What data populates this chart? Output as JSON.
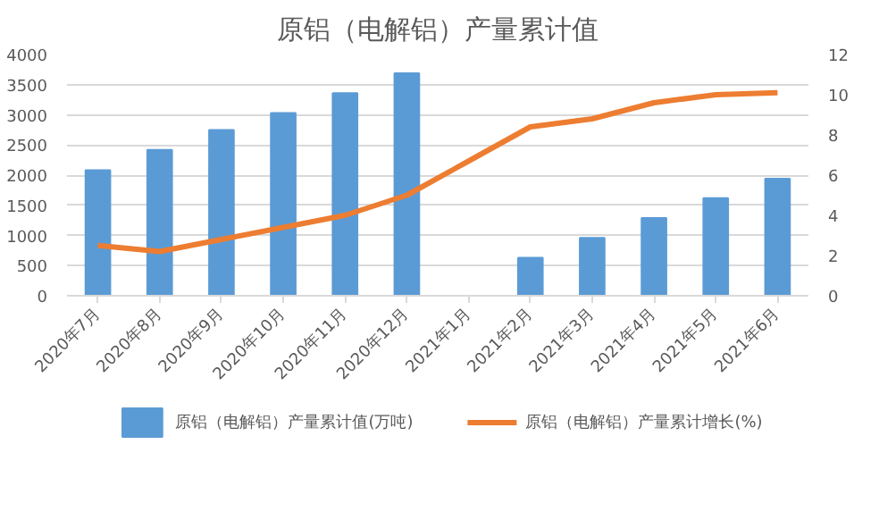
{
  "chart_data": {
    "type": "bar",
    "title": "原铝（电解铝）产量累计值",
    "categories": [
      "2020年7月",
      "2020年8月",
      "2020年9月",
      "2020年10月",
      "2020年11月",
      "2020年12月",
      "2021年1月",
      "2021年2月",
      "2021年3月",
      "2021年4月",
      "2021年5月",
      "2021年6月"
    ],
    "series": [
      {
        "name": "原铝（电解铝）产量累计值(万吨)",
        "color": "#5b9bd5",
        "values": [
          2080,
          2420,
          2750,
          3030,
          3360,
          3690,
          null,
          630,
          960,
          1290,
          1620,
          1940
        ]
      },
      {
        "name": "原铝（电解铝）产量累计增长(%)",
        "type": "line",
        "axis": "y2",
        "color": "#ed7d31",
        "values": [
          2.5,
          2.2,
          2.8,
          3.4,
          4.0,
          5.0,
          6.7,
          8.4,
          8.8,
          9.6,
          10.0,
          10.1
        ]
      }
    ],
    "ylim": [
      0,
      4000
    ],
    "yticks": [
      0,
      500,
      1000,
      1500,
      2000,
      2500,
      3000,
      3500,
      4000
    ],
    "y2lim": [
      0,
      12
    ],
    "y2ticks": [
      0,
      2,
      4,
      6,
      8,
      10,
      12
    ],
    "grid": "y",
    "legend": "bottom",
    "marker": "none",
    "line_style": "solid"
  }
}
